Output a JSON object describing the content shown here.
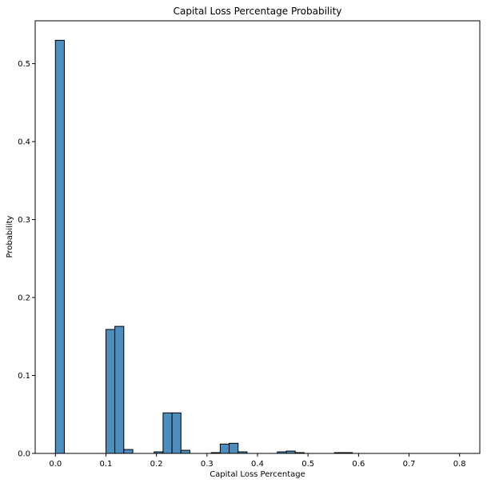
{
  "chart_data": {
    "type": "bar",
    "title": "Capital Loss Percentage Probability",
    "xlabel": "Capital Loss Percentage",
    "ylabel": "Probability",
    "xlim": [
      -0.04,
      0.84
    ],
    "ylim": [
      0,
      0.555
    ],
    "xticks": [
      0.0,
      0.1,
      0.2,
      0.3,
      0.4,
      0.5,
      0.6,
      0.7,
      0.8
    ],
    "yticks": [
      0.0,
      0.1,
      0.2,
      0.3,
      0.4,
      0.5
    ],
    "xtick_labels": [
      "0.0",
      "0.1",
      "0.2",
      "0.3",
      "0.4",
      "0.5",
      "0.6",
      "0.7",
      "0.8"
    ],
    "ytick_labels": [
      "0.0",
      "0.1",
      "0.2",
      "0.3",
      "0.4",
      "0.5"
    ],
    "grid": false,
    "bar_color": "#4c8fbf",
    "edge_color": "#000000",
    "bins": [
      {
        "x0": 0.0,
        "x1": 0.0177,
        "value": 0.53
      },
      {
        "x0": 0.1,
        "x1": 0.1177,
        "value": 0.159
      },
      {
        "x0": 0.1177,
        "x1": 0.1354,
        "value": 0.163
      },
      {
        "x0": 0.1354,
        "x1": 0.1531,
        "value": 0.005
      },
      {
        "x0": 0.1954,
        "x1": 0.2131,
        "value": 0.002
      },
      {
        "x0": 0.2131,
        "x1": 0.2308,
        "value": 0.052
      },
      {
        "x0": 0.2308,
        "x1": 0.2485,
        "value": 0.052
      },
      {
        "x0": 0.2485,
        "x1": 0.2662,
        "value": 0.004
      },
      {
        "x0": 0.3085,
        "x1": 0.3262,
        "value": 0.001
      },
      {
        "x0": 0.3262,
        "x1": 0.3439,
        "value": 0.012
      },
      {
        "x0": 0.3439,
        "x1": 0.3616,
        "value": 0.013
      },
      {
        "x0": 0.3616,
        "x1": 0.3793,
        "value": 0.002
      },
      {
        "x0": 0.4393,
        "x1": 0.457,
        "value": 0.002
      },
      {
        "x0": 0.457,
        "x1": 0.4747,
        "value": 0.003
      },
      {
        "x0": 0.4747,
        "x1": 0.4924,
        "value": 0.001
      },
      {
        "x0": 0.5524,
        "x1": 0.5701,
        "value": 0.001
      },
      {
        "x0": 0.5701,
        "x1": 0.5878,
        "value": 0.001
      }
    ]
  }
}
